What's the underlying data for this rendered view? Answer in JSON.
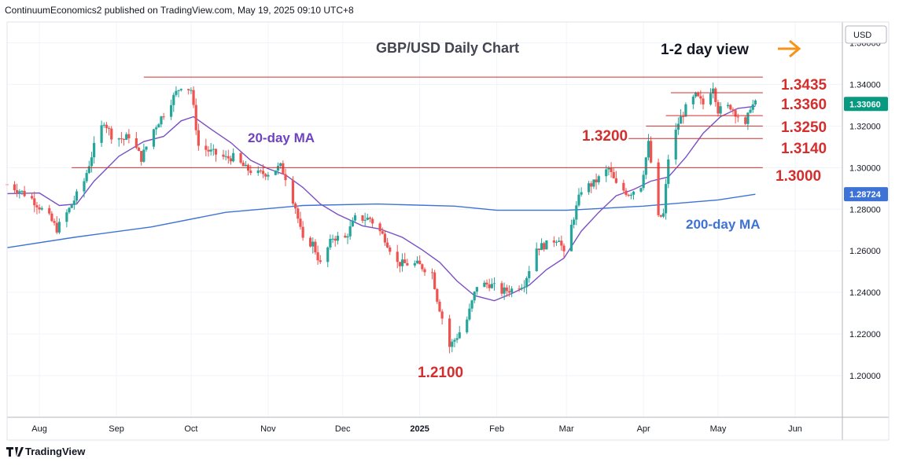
{
  "header": {
    "publisher_line": "ContinuumEconomics2 published on TradingView.com, May 19, 2025 09:10 UTC+8"
  },
  "footer": {
    "logo_text": "TradingView",
    "logo_icon": "tradingview-logo-icon"
  },
  "colors": {
    "up": "#26a69a",
    "down": "#ef5350",
    "level_line": "#d32f2f",
    "ma20": "#7b4fc4",
    "ma200": "#3d72d6",
    "arrow": "#f7931a",
    "grid": "#f0f3fa"
  },
  "chart_data": {
    "type": "candlestick",
    "title": "GBP/USD Daily Chart",
    "view_label": "1-2 day view",
    "currency_label": "USD",
    "ylim": [
      1.18,
      1.37
    ],
    "y_ticks": [
      1.2,
      1.22,
      1.24,
      1.26,
      1.28,
      1.3,
      1.32,
      1.34,
      1.36
    ],
    "y_tick_labels": [
      "1.20000",
      "1.22000",
      "1.24000",
      "1.26000",
      "1.28000",
      "1.30000",
      "1.32000",
      "1.34000",
      "1.36000"
    ],
    "x_labels": [
      {
        "label": "Aug",
        "date": "2024-08-01",
        "bold": false
      },
      {
        "label": "Sep",
        "date": "2024-09-01",
        "bold": false
      },
      {
        "label": "Oct",
        "date": "2024-10-01",
        "bold": false
      },
      {
        "label": "Nov",
        "date": "2024-11-01",
        "bold": false
      },
      {
        "label": "Dec",
        "date": "2024-12-01",
        "bold": false
      },
      {
        "label": "2025",
        "date": "2025-01-01",
        "bold": true
      },
      {
        "label": "Feb",
        "date": "2025-02-01",
        "bold": false
      },
      {
        "label": "Mar",
        "date": "2025-03-01",
        "bold": false
      },
      {
        "label": "Apr",
        "date": "2025-04-01",
        "bold": false
      },
      {
        "label": "May",
        "date": "2025-05-01",
        "bold": false
      },
      {
        "label": "Jun",
        "date": "2025-06-01",
        "bold": false
      }
    ],
    "x_range": [
      "2024-07-19",
      "2025-06-20"
    ],
    "last_price": {
      "value": 1.3306,
      "label": "1.33060"
    },
    "ma200_last": {
      "value": 1.28724,
      "label": "1.28724"
    },
    "levels": [
      {
        "value": 1.3435,
        "label": "1.3435",
        "from": "2024-09-12",
        "to": "2025-05-19"
      },
      {
        "value": 1.336,
        "label": "1.3360",
        "from": "2025-04-12",
        "to": "2025-05-19"
      },
      {
        "value": 1.325,
        "label": "1.3250",
        "from": "2025-04-10",
        "to": "2025-05-19"
      },
      {
        "value": 1.32,
        "label": "1.3200",
        "from": "2025-04-02",
        "to": "2025-05-19"
      },
      {
        "value": 1.314,
        "label": "1.3140",
        "from": "2025-03-26",
        "to": "2025-05-19"
      },
      {
        "value": 1.3,
        "label": "1.3000",
        "from": "2024-08-14",
        "to": "2025-05-19"
      }
    ],
    "annotations": [
      {
        "text": "1.2100",
        "date": "2025-01-13",
        "value": 1.21
      },
      {
        "text": "20-day MA",
        "date": "2024-10-31",
        "value": 1.319
      },
      {
        "text": "200-day MA",
        "date": "2025-04-24",
        "value": 1.2775
      }
    ],
    "ma20": [
      [
        "2024-07-19",
        1.2875
      ],
      [
        "2024-08-01",
        1.2878
      ],
      [
        "2024-08-09",
        1.2818
      ],
      [
        "2024-08-16",
        1.2825
      ],
      [
        "2024-08-23",
        1.2935
      ],
      [
        "2024-09-02",
        1.3055
      ],
      [
        "2024-09-12",
        1.3125
      ],
      [
        "2024-09-20",
        1.315
      ],
      [
        "2024-09-27",
        1.3225
      ],
      [
        "2024-10-02",
        1.3245
      ],
      [
        "2024-10-09",
        1.3185
      ],
      [
        "2024-10-17",
        1.312
      ],
      [
        "2024-10-25",
        1.3035
      ],
      [
        "2024-11-01",
        1.2995
      ],
      [
        "2024-11-08",
        1.2965
      ],
      [
        "2024-11-15",
        1.2905
      ],
      [
        "2024-11-22",
        1.2825
      ],
      [
        "2024-11-29",
        1.2775
      ],
      [
        "2024-12-09",
        1.272
      ],
      [
        "2024-12-16",
        1.2705
      ],
      [
        "2024-12-25",
        1.2665
      ],
      [
        "2025-01-02",
        1.2605
      ],
      [
        "2025-01-09",
        1.2545
      ],
      [
        "2025-01-16",
        1.2455
      ],
      [
        "2025-01-23",
        1.2385
      ],
      [
        "2025-01-31",
        1.236
      ],
      [
        "2025-02-07",
        1.2395
      ],
      [
        "2025-02-14",
        1.2435
      ],
      [
        "2025-02-21",
        1.251
      ],
      [
        "2025-02-28",
        1.2565
      ],
      [
        "2025-03-07",
        1.2695
      ],
      [
        "2025-03-14",
        1.2785
      ],
      [
        "2025-03-21",
        1.2865
      ],
      [
        "2025-03-28",
        1.2895
      ],
      [
        "2025-04-04",
        1.2935
      ],
      [
        "2025-04-11",
        1.2955
      ],
      [
        "2025-04-18",
        1.305
      ],
      [
        "2025-04-25",
        1.3165
      ],
      [
        "2025-05-02",
        1.3245
      ],
      [
        "2025-05-09",
        1.3285
      ],
      [
        "2025-05-16",
        1.3295
      ]
    ],
    "ma200": [
      [
        "2024-07-19",
        1.2615
      ],
      [
        "2024-08-15",
        1.2665
      ],
      [
        "2024-09-15",
        1.2715
      ],
      [
        "2024-10-15",
        1.2785
      ],
      [
        "2024-11-15",
        1.2818
      ],
      [
        "2024-12-15",
        1.2825
      ],
      [
        "2025-01-15",
        1.2815
      ],
      [
        "2025-02-01",
        1.2795
      ],
      [
        "2025-03-01",
        1.2795
      ],
      [
        "2025-04-01",
        1.2815
      ],
      [
        "2025-05-01",
        1.2845
      ],
      [
        "2025-05-16",
        1.2872
      ]
    ],
    "ohlc_anchors": [
      [
        "2024-07-19",
        1.292
      ],
      [
        "2024-07-24",
        1.289
      ],
      [
        "2024-07-29",
        1.285
      ],
      [
        "2024-08-05",
        1.276
      ],
      [
        "2024-08-08",
        1.2705
      ],
      [
        "2024-08-13",
        1.28
      ],
      [
        "2024-08-19",
        1.2935
      ],
      [
        "2024-08-23",
        1.31
      ],
      [
        "2024-08-27",
        1.3225
      ],
      [
        "2024-08-30",
        1.3155
      ],
      [
        "2024-09-04",
        1.3135
      ],
      [
        "2024-09-06",
        1.3155
      ],
      [
        "2024-09-11",
        1.3045
      ],
      [
        "2024-09-16",
        1.3185
      ],
      [
        "2024-09-20",
        1.326
      ],
      [
        "2024-09-25",
        1.336
      ],
      [
        "2024-09-27",
        1.3395
      ],
      [
        "2024-10-01",
        1.3375
      ],
      [
        "2024-10-04",
        1.3105
      ],
      [
        "2024-10-09",
        1.3075
      ],
      [
        "2024-10-15",
        1.3045
      ],
      [
        "2024-10-18",
        1.305
      ],
      [
        "2024-10-23",
        1.2995
      ],
      [
        "2024-10-28",
        1.297
      ],
      [
        "2024-11-01",
        1.2975
      ],
      [
        "2024-11-06",
        1.3005
      ],
      [
        "2024-11-08",
        1.2955
      ],
      [
        "2024-11-12",
        1.281
      ],
      [
        "2024-11-15",
        1.2645
      ],
      [
        "2024-11-19",
        1.2635
      ],
      [
        "2024-11-22",
        1.2535
      ],
      [
        "2024-11-27",
        1.2665
      ],
      [
        "2024-12-02",
        1.266
      ],
      [
        "2024-12-06",
        1.2755
      ],
      [
        "2024-12-12",
        1.2755
      ],
      [
        "2024-12-18",
        1.266
      ],
      [
        "2024-12-23",
        1.254
      ],
      [
        "2024-12-31",
        1.2535
      ],
      [
        "2025-01-06",
        1.2495
      ],
      [
        "2025-01-08",
        1.237
      ],
      [
        "2025-01-13",
        1.214
      ],
      [
        "2025-01-16",
        1.219
      ],
      [
        "2025-01-20",
        1.227
      ],
      [
        "2025-01-24",
        1.2435
      ],
      [
        "2025-01-29",
        1.244
      ],
      [
        "2025-02-03",
        1.2405
      ],
      [
        "2025-02-07",
        1.2415
      ],
      [
        "2025-02-12",
        1.2445
      ],
      [
        "2025-02-17",
        1.2615
      ],
      [
        "2025-02-21",
        1.263
      ],
      [
        "2025-02-26",
        1.2665
      ],
      [
        "2025-02-28",
        1.258
      ],
      [
        "2025-03-04",
        1.2765
      ],
      [
        "2025-03-07",
        1.2895
      ],
      [
        "2025-03-12",
        1.2925
      ],
      [
        "2025-03-18",
        1.2995
      ],
      [
        "2025-03-21",
        1.2915
      ],
      [
        "2025-03-26",
        1.2875
      ],
      [
        "2025-03-31",
        1.2915
      ],
      [
        "2025-04-03",
        1.3115
      ],
      [
        "2025-04-07",
        1.2755
      ],
      [
        "2025-04-09",
        1.2775
      ],
      [
        "2025-04-11",
        1.3045
      ],
      [
        "2025-04-15",
        1.3215
      ],
      [
        "2025-04-18",
        1.3285
      ],
      [
        "2025-04-22",
        1.3345
      ],
      [
        "2025-04-25",
        1.3305
      ],
      [
        "2025-04-29",
        1.3395
      ],
      [
        "2025-05-01",
        1.3275
      ],
      [
        "2025-05-06",
        1.3295
      ],
      [
        "2025-05-08",
        1.3265
      ],
      [
        "2025-05-12",
        1.3195
      ],
      [
        "2025-05-14",
        1.3295
      ],
      [
        "2025-05-16",
        1.3306
      ]
    ]
  }
}
